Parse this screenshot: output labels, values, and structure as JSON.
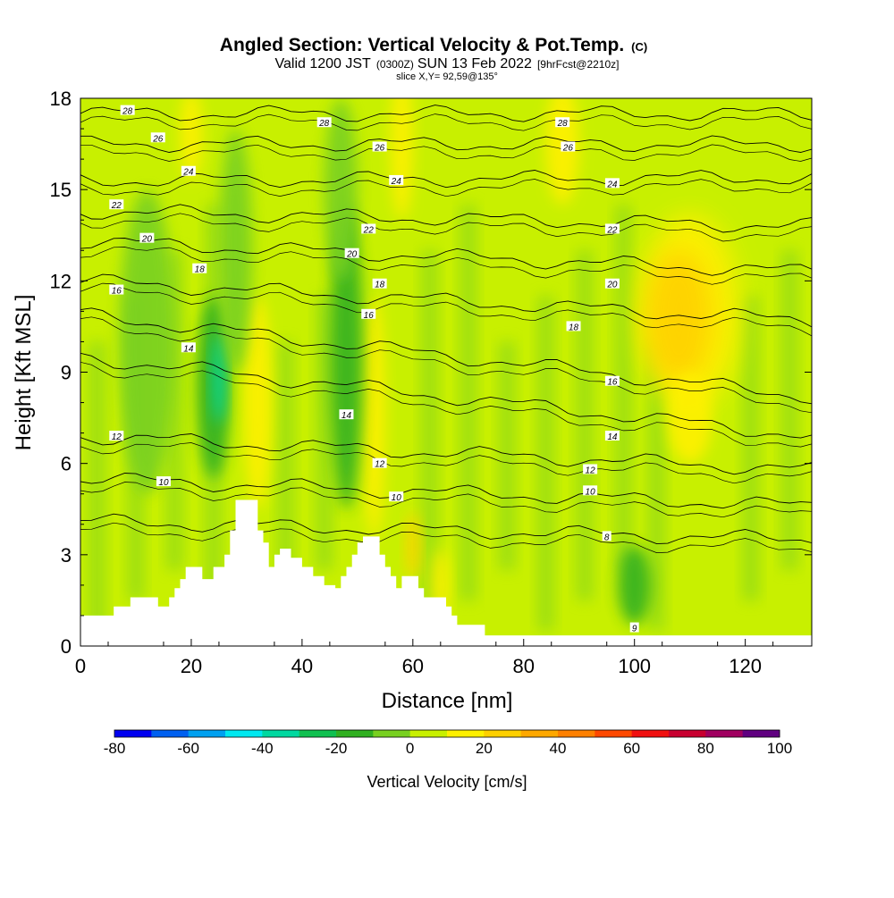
{
  "chart_data": {
    "type": "heatmap",
    "title": "Angled Section: Vertical Velocity & Pot.Temp.",
    "title_mark": "(C)",
    "subtitle_main": "Valid 1200 JST",
    "subtitle_z": "(0300Z)",
    "subtitle_date": "SUN 13 Feb 2022",
    "subtitle_fcst": "[9hrFcst@2210z]",
    "subtitle2": "slice X,Y= 92,59@135°",
    "xlabel": "Distance [nm]",
    "ylabel": "Height [Kft MSL]",
    "xlim": [
      0,
      132
    ],
    "ylim": [
      0,
      18
    ],
    "xticks": [
      0,
      20,
      40,
      60,
      80,
      100,
      120
    ],
    "yticks": [
      0,
      3,
      6,
      9,
      12,
      15,
      18
    ],
    "colorbar": {
      "label": "Vertical Velocity [cm/s]",
      "ticks": [
        -80,
        -60,
        -40,
        -20,
        0,
        20,
        40,
        60,
        80,
        100
      ],
      "min": -80,
      "max": 100,
      "colors": [
        "#0000f0",
        "#0060f0",
        "#00a0f0",
        "#00e8f0",
        "#00d8a0",
        "#10c050",
        "#30b020",
        "#78d020",
        "#c8f000",
        "#fff000",
        "#ffd000",
        "#ffa800",
        "#ff8000",
        "#ff4800",
        "#f01010",
        "#c80030",
        "#a00060",
        "#600080"
      ]
    },
    "background_w": 4,
    "terrain": [
      [
        0,
        1.0
      ],
      [
        5,
        1.0
      ],
      [
        6,
        1.3
      ],
      [
        8,
        1.3
      ],
      [
        9,
        1.6
      ],
      [
        13,
        1.6
      ],
      [
        14,
        1.3
      ],
      [
        15,
        1.3
      ],
      [
        16,
        1.6
      ],
      [
        17,
        1.9
      ],
      [
        18,
        2.2
      ],
      [
        19,
        2.6
      ],
      [
        21,
        2.6
      ],
      [
        22,
        2.2
      ],
      [
        24,
        2.6
      ],
      [
        25,
        2.6
      ],
      [
        26,
        3.0
      ],
      [
        27,
        3.8
      ],
      [
        28,
        4.8
      ],
      [
        31,
        4.8
      ],
      [
        32,
        3.8
      ],
      [
        33,
        3.4
      ],
      [
        34,
        2.6
      ],
      [
        35,
        3.0
      ],
      [
        36,
        3.2
      ],
      [
        37,
        3.2
      ],
      [
        38,
        2.9
      ],
      [
        40,
        2.6
      ],
      [
        41,
        2.6
      ],
      [
        42,
        2.3
      ],
      [
        43,
        2.3
      ],
      [
        44,
        2.0
      ],
      [
        45,
        2.0
      ],
      [
        46,
        1.9
      ],
      [
        47,
        2.3
      ],
      [
        48,
        2.6
      ],
      [
        49,
        3.0
      ],
      [
        50,
        3.4
      ],
      [
        51,
        3.6
      ],
      [
        53,
        3.6
      ],
      [
        54,
        3.0
      ],
      [
        55,
        2.6
      ],
      [
        56,
        2.3
      ],
      [
        57,
        1.9
      ],
      [
        58,
        2.3
      ],
      [
        60,
        2.3
      ],
      [
        61,
        1.9
      ],
      [
        62,
        1.6
      ],
      [
        65,
        1.6
      ],
      [
        66,
        1.3
      ],
      [
        67,
        1.0
      ],
      [
        68,
        0.7
      ],
      [
        72,
        0.7
      ],
      [
        73,
        0.35
      ],
      [
        132,
        0.35
      ]
    ],
    "updrafts": [
      {
        "x": 58,
        "y": 16.5,
        "rx": 2,
        "ry": 2.5,
        "w": 12
      },
      {
        "x": 60,
        "y": 3.3,
        "rx": 1.2,
        "ry": 1.1,
        "w": 28
      },
      {
        "x": 110,
        "y": 11,
        "rx": 9,
        "ry": 3.2,
        "w": 16
      },
      {
        "x": 108,
        "y": 10.8,
        "rx": 6,
        "ry": 2.2,
        "w": 28
      },
      {
        "x": 110,
        "y": 7.5,
        "rx": 4,
        "ry": 1.5,
        "w": 14
      },
      {
        "x": 32,
        "y": 8,
        "rx": 2.5,
        "ry": 3.5,
        "w": 12
      },
      {
        "x": 53,
        "y": 7.5,
        "rx": 2,
        "ry": 4,
        "w": 12
      },
      {
        "x": 87,
        "y": 16.5,
        "rx": 3,
        "ry": 2,
        "w": 12
      },
      {
        "x": 20,
        "y": 16.8,
        "rx": 2,
        "ry": 1.5,
        "w": 12
      },
      {
        "x": 65,
        "y": 2.0,
        "rx": 1.5,
        "ry": 1.2,
        "w": 14
      }
    ],
    "downdrafts": [
      {
        "x": 24,
        "y": 8.5,
        "rx": 3,
        "ry": 3,
        "w": -20
      },
      {
        "x": 25,
        "y": 8.8,
        "rx": 1.2,
        "ry": 1.5,
        "w": -40
      },
      {
        "x": 48,
        "y": 9.5,
        "rx": 3,
        "ry": 5,
        "w": -20
      },
      {
        "x": 100,
        "y": 2.0,
        "rx": 3,
        "ry": 1.3,
        "w": -20
      },
      {
        "x": 28,
        "y": 13,
        "rx": 3,
        "ry": 4,
        "w": -6
      },
      {
        "x": 12,
        "y": 10,
        "rx": 5,
        "ry": 5,
        "w": -4
      },
      {
        "x": 47,
        "y": 15,
        "rx": 3,
        "ry": 3,
        "w": -6
      }
    ],
    "theta_contours": [
      {
        "value": 28,
        "label": "28",
        "edges": [
          17.5,
          17.5
        ]
      },
      {
        "value": 26,
        "label": "26",
        "edges": [
          16.5,
          16.5
        ]
      },
      {
        "value": 24,
        "label": "24",
        "edges": [
          15.3,
          15.4
        ]
      },
      {
        "value": 22,
        "label": "22",
        "edges": [
          14.3,
          13.8
        ]
      },
      {
        "value": 20,
        "label": "20",
        "edges": [
          13.3,
          12.3
        ]
      },
      {
        "value": 18,
        "label": "18",
        "edges": [
          12.0,
          10.7
        ]
      },
      {
        "value": 16,
        "label": "16",
        "edges": [
          10.9,
          8.2
        ]
      },
      {
        "value": 14,
        "label": "14",
        "edges": [
          9.5,
          6.9
        ]
      },
      {
        "value": 12,
        "label": "12",
        "edges": [
          6.9,
          5.8
        ]
      },
      {
        "value": 10,
        "label": "10",
        "edges": [
          5.5,
          4.6
        ]
      },
      {
        "value": 8,
        "label": "8",
        "edges": [
          4.1,
          3.5
        ]
      }
    ],
    "contour_labels": [
      {
        "text": "28",
        "x": 8.5,
        "y": 17.6
      },
      {
        "text": "28",
        "x": 44,
        "y": 17.2
      },
      {
        "text": "28",
        "x": 87,
        "y": 17.2
      },
      {
        "text": "26",
        "x": 14,
        "y": 16.7
      },
      {
        "text": "26",
        "x": 54,
        "y": 16.4
      },
      {
        "text": "26",
        "x": 88,
        "y": 16.4
      },
      {
        "text": "24",
        "x": 19.5,
        "y": 15.6
      },
      {
        "text": "24",
        "x": 57,
        "y": 15.3
      },
      {
        "text": "24",
        "x": 96,
        "y": 15.2
      },
      {
        "text": "22",
        "x": 6.5,
        "y": 14.5
      },
      {
        "text": "22",
        "x": 52,
        "y": 13.7
      },
      {
        "text": "22",
        "x": 96,
        "y": 13.7
      },
      {
        "text": "20",
        "x": 12,
        "y": 13.4
      },
      {
        "text": "20",
        "x": 49,
        "y": 12.9
      },
      {
        "text": "20",
        "x": 96,
        "y": 11.9
      },
      {
        "text": "18",
        "x": 21.5,
        "y": 12.4
      },
      {
        "text": "18",
        "x": 54,
        "y": 11.9
      },
      {
        "text": "18",
        "x": 89,
        "y": 10.5
      },
      {
        "text": "16",
        "x": 6.5,
        "y": 11.7
      },
      {
        "text": "16",
        "x": 52,
        "y": 10.9
      },
      {
        "text": "16",
        "x": 96,
        "y": 8.7
      },
      {
        "text": "14",
        "x": 19.5,
        "y": 9.8
      },
      {
        "text": "14",
        "x": 48,
        "y": 7.6
      },
      {
        "text": "14",
        "x": 96,
        "y": 6.9
      },
      {
        "text": "12",
        "x": 6.5,
        "y": 6.9
      },
      {
        "text": "12",
        "x": 54,
        "y": 6.0
      },
      {
        "text": "12",
        "x": 92,
        "y": 5.8
      },
      {
        "text": "10",
        "x": 15,
        "y": 5.4
      },
      {
        "text": "10",
        "x": 57,
        "y": 4.9
      },
      {
        "text": "10",
        "x": 92,
        "y": 5.1
      },
      {
        "text": "8",
        "x": 95,
        "y": 3.6
      },
      {
        "text": "9",
        "x": 100,
        "y": 0.6
      }
    ]
  }
}
